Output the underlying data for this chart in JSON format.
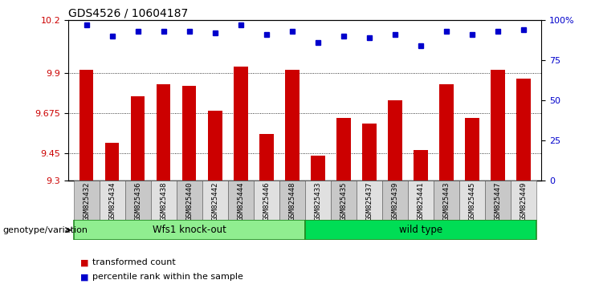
{
  "title": "GDS4526 / 10604187",
  "samples": [
    "GSM825432",
    "GSM825434",
    "GSM825436",
    "GSM825438",
    "GSM825440",
    "GSM825442",
    "GSM825444",
    "GSM825446",
    "GSM825448",
    "GSM825433",
    "GSM825435",
    "GSM825437",
    "GSM825439",
    "GSM825441",
    "GSM825443",
    "GSM825445",
    "GSM825447",
    "GSM825449"
  ],
  "bar_values": [
    9.92,
    9.51,
    9.77,
    9.84,
    9.83,
    9.69,
    9.94,
    9.56,
    9.92,
    9.44,
    9.65,
    9.62,
    9.75,
    9.47,
    9.84,
    9.65,
    9.92,
    9.87
  ],
  "percentile_values": [
    97,
    90,
    93,
    93,
    93,
    92,
    97,
    91,
    93,
    86,
    90,
    89,
    91,
    84,
    93,
    91,
    93,
    94
  ],
  "groups": [
    {
      "label": "Wfs1 knock-out",
      "start": 0,
      "end": 9,
      "color": "#90EE90",
      "border": "#228B22"
    },
    {
      "label": "wild type",
      "start": 9,
      "end": 18,
      "color": "#00DD55",
      "border": "#228B22"
    }
  ],
  "ylim": [
    9.3,
    10.2
  ],
  "yticks": [
    9.3,
    9.45,
    9.675,
    9.9,
    10.2
  ],
  "ytick_labels": [
    "9.3",
    "9.45",
    "9.675",
    "9.9",
    "10.2"
  ],
  "right_yticks": [
    0,
    25,
    50,
    75,
    100
  ],
  "right_ytick_labels": [
    "0",
    "25",
    "50",
    "75",
    "100%"
  ],
  "bar_color": "#CC0000",
  "dot_color": "#0000CC",
  "bar_width": 0.55,
  "legend_items": [
    {
      "label": "transformed count",
      "color": "#CC0000"
    },
    {
      "label": "percentile rank within the sample",
      "color": "#0000CC"
    }
  ],
  "group_label": "genotype/variation"
}
